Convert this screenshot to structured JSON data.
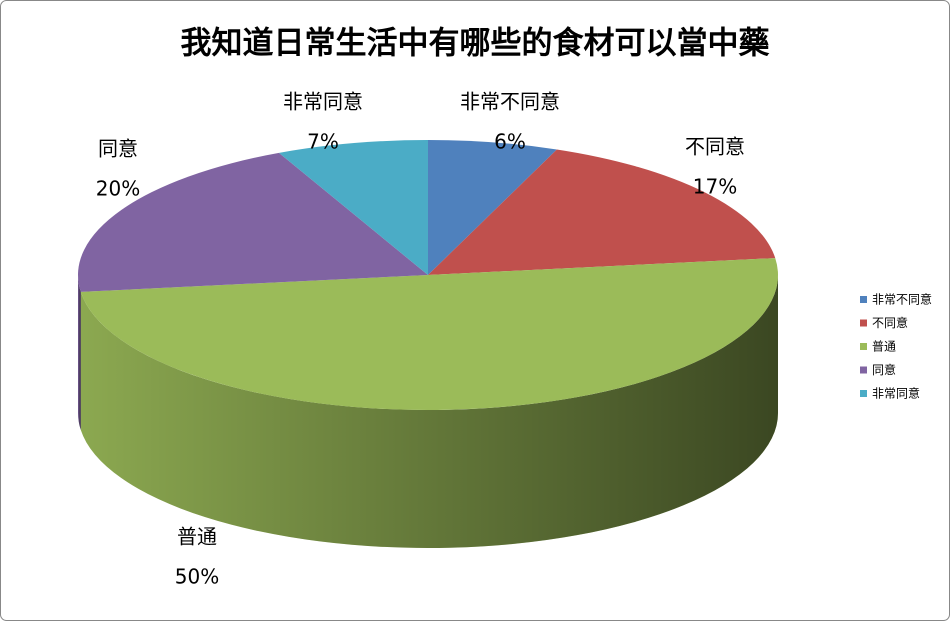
{
  "chart_data": {
    "type": "pie",
    "title": "我知道日常生活中有哪些的食材可以當中藥",
    "categories": [
      "非常不同意",
      "不同意",
      "普通",
      "同意",
      "非常同意"
    ],
    "values": [
      6,
      17,
      50,
      20,
      7
    ],
    "value_labels": [
      "6%",
      "17%",
      "50%",
      "20%",
      "7%"
    ],
    "colors": [
      "#4f81bd",
      "#c0504d",
      "#9bbb59",
      "#8064a2",
      "#4bacc6"
    ],
    "legend": "right"
  }
}
